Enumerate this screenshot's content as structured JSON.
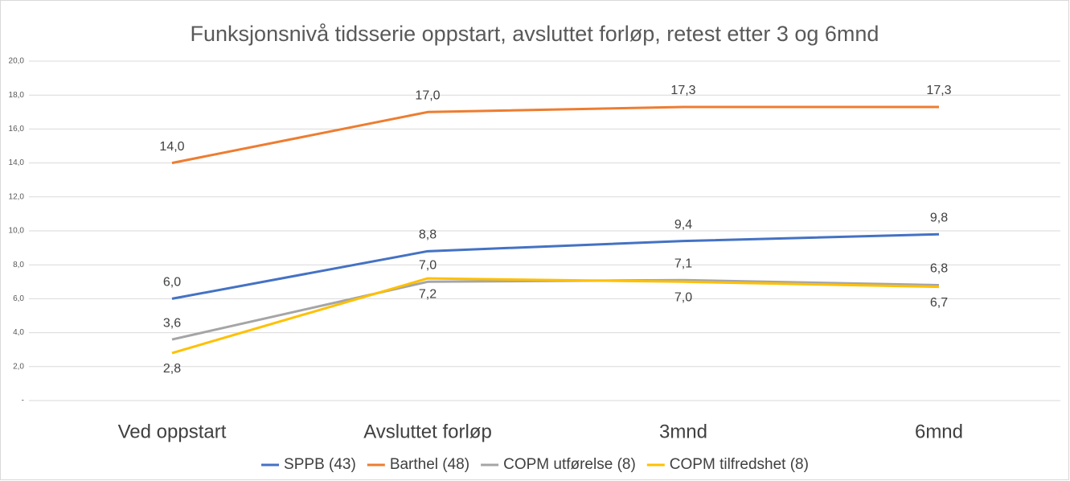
{
  "chart_data": {
    "type": "line",
    "title": "Funksjonsnivå tidsserie oppstart, avsluttet forløp, retest etter 3 og 6mnd",
    "categories": [
      "Ved oppstart",
      "Avsluttet forløp",
      "3mnd",
      "6mnd"
    ],
    "series": [
      {
        "name": "SPPB (43)",
        "color": "#4472c4",
        "values": [
          6.0,
          8.8,
          9.4,
          9.8
        ],
        "value_labels": [
          "6,0",
          "8,8",
          "9,4",
          "9,8"
        ]
      },
      {
        "name": "Barthel (48)",
        "color": "#ed7d31",
        "values": [
          14.0,
          17.0,
          17.3,
          17.3
        ],
        "value_labels": [
          "14,0",
          "17,0",
          "17,3",
          "17,3"
        ]
      },
      {
        "name": "COPM utførelse (8)",
        "color": "#a5a5a5",
        "values": [
          3.6,
          7.0,
          7.1,
          6.8
        ],
        "value_labels": [
          "3,6",
          "7,0",
          "7,1",
          "6,8"
        ]
      },
      {
        "name": "COPM tilfredshet (8)",
        "color": "#ffc000",
        "values": [
          2.8,
          7.2,
          7.0,
          6.7
        ],
        "value_labels": [
          "2,8",
          "7,2",
          "7,0",
          "6,7"
        ]
      }
    ],
    "ylim": [
      0,
      20
    ],
    "yticks": [
      {
        "value": 0,
        "label": "-"
      },
      {
        "value": 2,
        "label": "2,0"
      },
      {
        "value": 4,
        "label": "4,0"
      },
      {
        "value": 6,
        "label": "6,0"
      },
      {
        "value": 8,
        "label": "8,0"
      },
      {
        "value": 10,
        "label": "10,0"
      },
      {
        "value": 12,
        "label": "12,0"
      },
      {
        "value": 14,
        "label": "14,0"
      },
      {
        "value": 16,
        "label": "16,0"
      },
      {
        "value": 18,
        "label": "18,0"
      },
      {
        "value": 20,
        "label": "20,0"
      }
    ],
    "grid": true,
    "legend": "bottom"
  }
}
